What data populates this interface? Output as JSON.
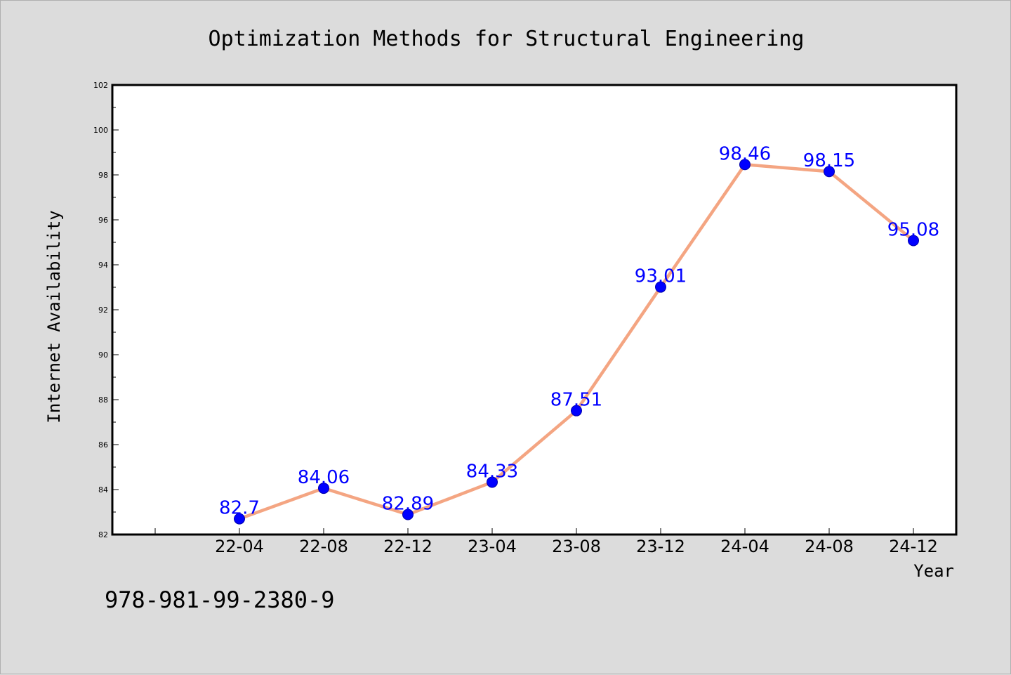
{
  "footer_code": "978-981-99-2380-9",
  "chart_data": {
    "type": "line",
    "title": "Optimization Methods for Structural Engineering",
    "xlabel": "Year",
    "ylabel": "Internet Availability",
    "categories": [
      "22-04",
      "22-08",
      "22-12",
      "23-04",
      "23-08",
      "23-12",
      "24-04",
      "24-08",
      "24-12"
    ],
    "values": [
      82.7,
      84.06,
      82.89,
      84.33,
      87.51,
      93.01,
      98.46,
      98.15,
      95.08
    ],
    "data_labels": [
      "82.7",
      "84.06",
      "82.89",
      "84.33",
      "87.51",
      "93.01",
      "98.46",
      "98.15",
      "95.08"
    ],
    "ylim": [
      82,
      102
    ],
    "yticks": [
      82,
      84,
      86,
      88,
      90,
      92,
      94,
      96,
      98,
      100,
      102
    ],
    "grid": false,
    "legend": "none",
    "colors": {
      "line": "#f4a582",
      "marker": "#0000ff",
      "label": "#0000ff",
      "plot_bg": "#ffffff",
      "page_bg": "#dcdcdc"
    }
  }
}
